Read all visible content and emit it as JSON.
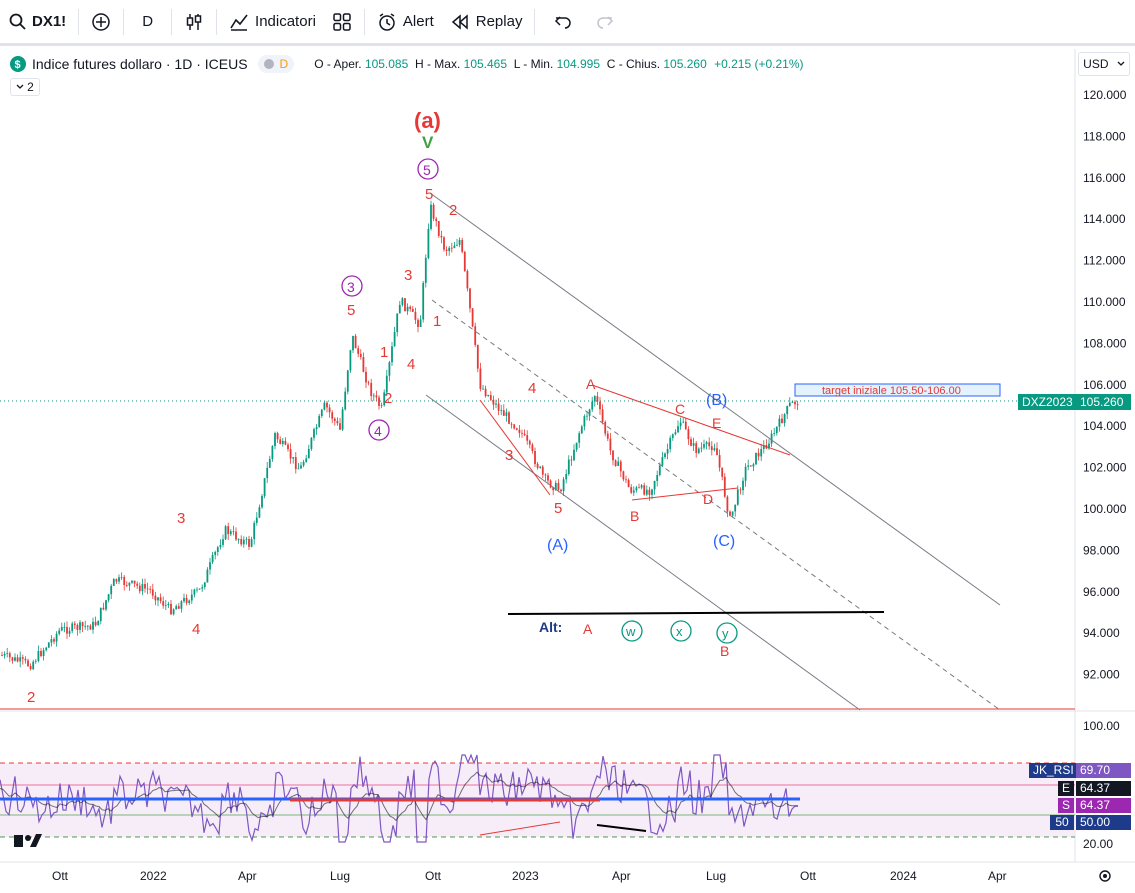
{
  "toolbar": {
    "symbol": "DX1!",
    "interval": "D",
    "indicators_label": "Indicatori",
    "alert_label": "Alert",
    "replay_label": "Replay"
  },
  "legend": {
    "title": "Indice futures dollaro · 1D · ICEUS",
    "pill_letter": "D",
    "open_label": "O - Aper.",
    "open": "105.085",
    "high_label": "H - Max.",
    "high": "105.465",
    "low_label": "L - Min.",
    "low": "104.995",
    "close_label": "C - Chius.",
    "close": "105.260",
    "change": "+0.215 (+0.21%)",
    "collapse_count": "2"
  },
  "currency": "USD",
  "price_axis": {
    "ticks": [
      "120.000",
      "118.000",
      "116.000",
      "114.000",
      "112.000",
      "110.000",
      "108.000",
      "106.000",
      "104.000",
      "102.000",
      "100.000",
      "98.000",
      "96.000",
      "94.000",
      "92.000"
    ],
    "contract_label": "DXZ2023",
    "last_price": "105.260"
  },
  "rsi_axis": {
    "ticks": [
      "100.00",
      "20.00"
    ],
    "name": "JK_RSI",
    "value": "69.70",
    "e_label": "E",
    "e_value": "64.37",
    "s_label": "S",
    "s_value": "64.37",
    "mid_value": "50",
    "mid_line": "50.00"
  },
  "time_axis": [
    "Ott",
    "2022",
    "Apr",
    "Lug",
    "Ott",
    "2023",
    "Apr",
    "Lug",
    "Ott",
    "2024",
    "Apr"
  ],
  "annotations": {
    "wave_a": "(a)",
    "wave_v": "V",
    "circle_5": "5",
    "circle_3": "3",
    "circle_4": "4",
    "big_A": "(A)",
    "big_B": "(B)",
    "big_C": "(C)",
    "alt_label": "Alt:",
    "alt_A": "A",
    "alt_w": "w",
    "alt_x": "x",
    "alt_y": "y",
    "alt_B": "B",
    "target": "target iniziale 105.50-106.00",
    "lbl_A": "A",
    "lbl_B": "B",
    "lbl_C": "C",
    "lbl_D": "D",
    "lbl_E": "E",
    "n1": "1",
    "n2": "2",
    "n3": "3",
    "n4": "4",
    "n5": "5"
  },
  "colors": {
    "red_label": "#e53935",
    "purple": "#9c27b0",
    "blue": "#2962ff",
    "teal": "#089981",
    "rsi_line": "#7e57c2",
    "rsi_bg": "#f3e5f5"
  }
}
